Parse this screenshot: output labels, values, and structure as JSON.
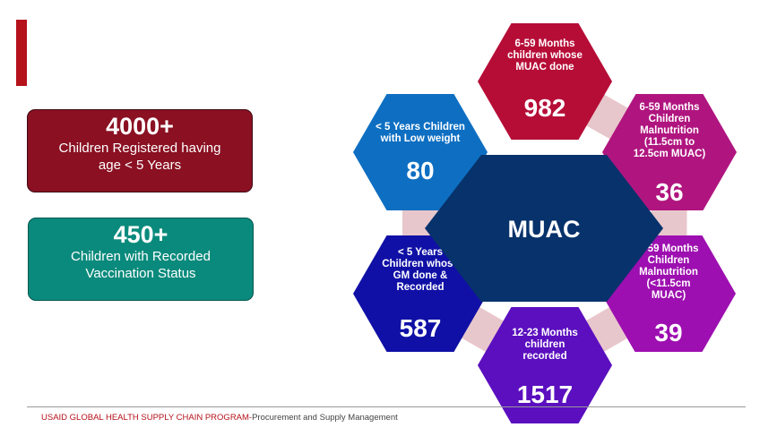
{
  "stats": [
    {
      "value": "4000+",
      "label_line1": "Children Registered having",
      "label_line2": "age < 5 Years",
      "color": "#8a1022"
    },
    {
      "value": "450+",
      "label_line1": "Children with Recorded",
      "label_line2": "Vaccination Status",
      "color": "#0a8a7c"
    }
  ],
  "diagram": {
    "center": {
      "label": "MUAC",
      "color": "#07326b"
    },
    "nodes": [
      {
        "id": "muac-done",
        "label_lines": [
          "6-59 Months",
          "children whose",
          "MUAC done"
        ],
        "value": "982",
        "color": "#b60d37"
      },
      {
        "id": "mal-11-12",
        "label_lines": [
          "6-59 Months",
          "Children",
          "Malnutrition",
          "(11.5cm to",
          "12.5cm MUAC)"
        ],
        "value": "36",
        "color": "#b0157f"
      },
      {
        "id": "mal-under-11",
        "label_lines": [
          "6-59 Months",
          "Children",
          "Malnutrition",
          "(<11.5cm",
          "MUAC)"
        ],
        "value": "39",
        "color": "#9d0fb0"
      },
      {
        "id": "12-23-recorded",
        "label_lines": [
          "12-23 Months",
          "children",
          "recorded"
        ],
        "value": "1517",
        "color": "#5b0fbf"
      },
      {
        "id": "gm-done",
        "label_lines": [
          "< 5 Years",
          "Children whose",
          "GM done &",
          "Recorded"
        ],
        "value": "587",
        "color": "#1010a6"
      },
      {
        "id": "low-weight",
        "label_lines": [
          "< 5 Years Children",
          "with Low weight"
        ],
        "value": "80",
        "color": "#0e6fc2"
      }
    ],
    "connector_color": "#e8c7cc"
  },
  "footer": {
    "org": "USAID GLOBAL HEALTH SUPPLY CHAIN PROGRAM-",
    "program": "Procurement and Supply Management"
  }
}
